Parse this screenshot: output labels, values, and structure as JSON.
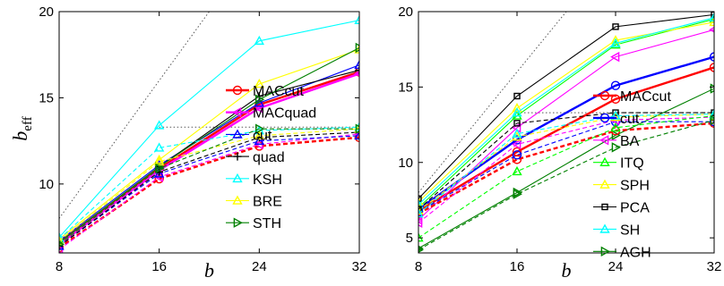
{
  "chart_data": [
    {
      "type": "line",
      "xlabel": "b",
      "ylabel": "b",
      "ylabel_sub": "eff",
      "x": [
        8,
        16,
        24,
        32
      ],
      "xlim": [
        8,
        32
      ],
      "ylim": [
        6,
        20
      ],
      "yticks": [
        10,
        15,
        20
      ],
      "legend_position": "right",
      "series": [
        {
          "name": "MACcut",
          "color": "#ff0000",
          "marker": "circle",
          "dashed": false,
          "thick": true,
          "values": [
            6.6,
            10.9,
            14.6,
            16.5
          ]
        },
        {
          "name": "MACquad",
          "color": "#ff00ff",
          "marker": "triangle-left",
          "dashed": false,
          "thick": true,
          "values": [
            6.5,
            10.8,
            14.4,
            16.4
          ]
        },
        {
          "name": "cut",
          "color": "#0000ff",
          "marker": "triangle-up",
          "dashed": false,
          "thick": false,
          "values": [
            6.7,
            11.1,
            14.7,
            16.9
          ]
        },
        {
          "name": "quad",
          "color": "#000000",
          "marker": "plus",
          "dashed": false,
          "thick": false,
          "values": [
            6.6,
            11.0,
            15.1,
            16.6
          ]
        },
        {
          "name": "KSH",
          "color": "#00ffff",
          "marker": "triangle-up",
          "dashed": false,
          "thick": false,
          "values": [
            6.9,
            13.4,
            18.3,
            19.5
          ]
        },
        {
          "name": "BRE",
          "color": "#ffff00",
          "marker": "triangle-up",
          "dashed": false,
          "thick": false,
          "values": [
            6.8,
            11.4,
            15.8,
            17.8
          ]
        },
        {
          "name": "STH",
          "color": "#008000",
          "marker": "triangle-right",
          "dashed": false,
          "thick": false,
          "values": [
            6.6,
            11.0,
            14.9,
            17.9
          ]
        },
        {
          "name": "",
          "color": "#ff0000",
          "marker": "circle",
          "dashed": true,
          "thick": true,
          "values": [
            6.3,
            10.3,
            12.2,
            12.7
          ]
        },
        {
          "name": "",
          "color": "#ff00ff",
          "marker": "triangle-left",
          "dashed": true,
          "thick": false,
          "values": [
            6.2,
            10.4,
            12.3,
            12.9
          ]
        },
        {
          "name": "",
          "color": "#0000ff",
          "marker": "triangle-up",
          "dashed": true,
          "thick": false,
          "values": [
            6.4,
            10.6,
            12.5,
            12.8
          ]
        },
        {
          "name": "",
          "color": "#000000",
          "marker": "plus",
          "dashed": true,
          "thick": false,
          "values": [
            6.4,
            10.7,
            12.7,
            13.0
          ]
        },
        {
          "name": "",
          "color": "#00ffff",
          "marker": "triangle-up",
          "dashed": true,
          "thick": false,
          "values": [
            6.8,
            12.1,
            13.1,
            13.3
          ]
        },
        {
          "name": "",
          "color": "#ffff00",
          "marker": "triangle-up",
          "dashed": true,
          "thick": false,
          "values": [
            6.7,
            11.3,
            12.8,
            13.2
          ]
        },
        {
          "name": "",
          "color": "#008000",
          "marker": "triangle-right",
          "dashed": true,
          "thick": false,
          "values": [
            6.5,
            10.9,
            13.2,
            13.2
          ]
        }
      ],
      "reference_lines": [
        {
          "color": "#555555",
          "points": [
            [
              8,
              8
            ],
            [
              20,
              20
            ]
          ]
        },
        {
          "color": "#555555",
          "points": [
            [
              16,
              13.3
            ],
            [
              32,
              13.3
            ]
          ]
        }
      ]
    },
    {
      "type": "line",
      "xlabel": "b",
      "ylabel": "",
      "x": [
        8,
        16,
        24,
        32
      ],
      "xlim": [
        8,
        32
      ],
      "ylim": [
        4,
        20
      ],
      "yticks": [
        5,
        10,
        15,
        20
      ],
      "legend_position": "right",
      "series": [
        {
          "name": "MACcut",
          "color": "#ff0000",
          "marker": "circle",
          "dashed": false,
          "thick": true,
          "values": [
            6.8,
            10.7,
            14.2,
            16.3
          ]
        },
        {
          "name": "cut",
          "color": "#0000ff",
          "marker": "circle",
          "dashed": false,
          "thick": true,
          "values": [
            6.9,
            11.5,
            15.1,
            17.0
          ]
        },
        {
          "name": "BA",
          "color": "#ff00ff",
          "marker": "triangle-left",
          "dashed": false,
          "thick": false,
          "values": [
            6.2,
            12.3,
            17.0,
            18.8
          ]
        },
        {
          "name": "ITQ",
          "color": "#00ff00",
          "marker": "triangle-up",
          "dashed": false,
          "thick": false,
          "values": [
            7.0,
            13.1,
            17.8,
            19.5
          ]
        },
        {
          "name": "SPH",
          "color": "#ffff00",
          "marker": "triangle-up",
          "dashed": false,
          "thick": false,
          "values": [
            7.4,
            13.6,
            18.1,
            19.3
          ]
        },
        {
          "name": "PCA",
          "color": "#000000",
          "marker": "square",
          "dashed": false,
          "thick": false,
          "values": [
            7.6,
            14.4,
            19.0,
            19.8
          ]
        },
        {
          "name": "SH",
          "color": "#00ffff",
          "marker": "triangle-up",
          "dashed": false,
          "thick": false,
          "values": [
            7.2,
            13.3,
            17.9,
            19.6
          ]
        },
        {
          "name": "AGH",
          "color": "#008000",
          "marker": "triangle-right",
          "dashed": false,
          "thick": false,
          "values": [
            4.3,
            8.0,
            11.8,
            14.9
          ]
        },
        {
          "name": "",
          "color": "#ff0000",
          "marker": "circle",
          "dashed": true,
          "thick": true,
          "values": [
            6.6,
            10.2,
            12.1,
            12.6
          ]
        },
        {
          "name": "",
          "color": "#0000ff",
          "marker": "circle",
          "dashed": true,
          "thick": false,
          "values": [
            6.7,
            10.5,
            12.7,
            12.7
          ]
        },
        {
          "name": "",
          "color": "#ff00ff",
          "marker": "triangle-left",
          "dashed": true,
          "thick": false,
          "values": [
            6.0,
            11.2,
            12.8,
            13.0
          ]
        },
        {
          "name": "",
          "color": "#00ff00",
          "marker": "triangle-up",
          "dashed": true,
          "thick": false,
          "values": [
            5.0,
            9.4,
            12.3,
            13.1
          ]
        },
        {
          "name": "",
          "color": "#ffff00",
          "marker": "triangle-up",
          "dashed": true,
          "thick": false,
          "values": [
            6.8,
            11.7,
            13.0,
            13.2
          ]
        },
        {
          "name": "",
          "color": "#000000",
          "marker": "square",
          "dashed": true,
          "thick": false,
          "values": [
            6.9,
            12.6,
            13.3,
            13.3
          ]
        },
        {
          "name": "",
          "color": "#00ffff",
          "marker": "triangle-up",
          "dashed": true,
          "thick": false,
          "values": [
            6.6,
            11.9,
            13.1,
            13.2
          ]
        },
        {
          "name": "",
          "color": "#008000",
          "marker": "triangle-right",
          "dashed": true,
          "thick": false,
          "values": [
            4.2,
            7.9,
            11.0,
            12.8
          ]
        }
      ],
      "reference_lines": [
        {
          "color": "#555555",
          "points": [
            [
              8,
              8
            ],
            [
              20,
              20
            ]
          ]
        },
        {
          "color": "#555555",
          "points": [
            [
              16,
              13.3
            ],
            [
              32,
              13.3
            ]
          ]
        }
      ]
    }
  ]
}
